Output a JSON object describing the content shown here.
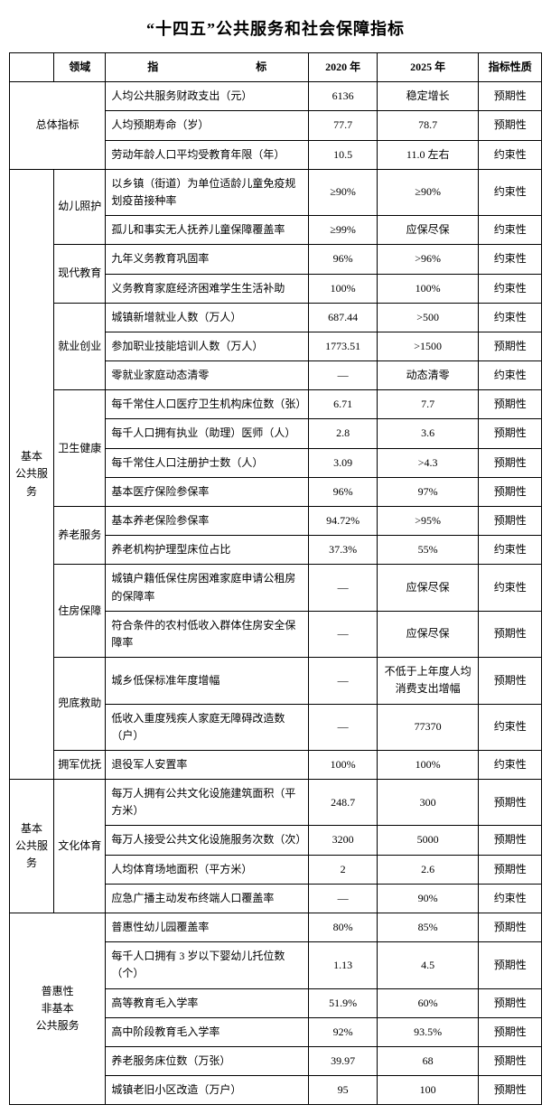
{
  "title": "“十四五”公共服务和社会保障指标",
  "headers": {
    "col1": "",
    "col2": "领域",
    "col3": "指　　　标",
    "col4": "2020 年",
    "col5": "2025 年",
    "col6": "指标性质"
  },
  "cat": {
    "overall": "总体指标",
    "basic": "基本\n公共服务",
    "basic2": "基本\n公共服务",
    "inclusive": "普惠性\n非基本\n公共服务"
  },
  "dom": {
    "childcare": "幼儿照护",
    "edu": "现代教育",
    "employ": "就业创业",
    "health": "卫生健康",
    "eld": "养老服务",
    "housing": "住房保障",
    "poverty": "兜底救助",
    "vet": "拥军优抚",
    "culture": "文化体育"
  },
  "rows": {
    "r1": {
      "ind": "人均公共服务财政支出（元）",
      "y20": "6136",
      "y25": "稳定增长",
      "nat": "预期性"
    },
    "r2": {
      "ind": "人均预期寿命（岁）",
      "y20": "77.7",
      "y25": "78.7",
      "nat": "预期性"
    },
    "r3": {
      "ind": "劳动年龄人口平均受教育年限（年）",
      "y20": "10.5",
      "y25": "11.0 左右",
      "nat": "约束性"
    },
    "r4": {
      "ind": "以乡镇（街道）为单位适龄儿童免疫规划疫苗接种率",
      "y20": "≥90%",
      "y25": "≥90%",
      "nat": "约束性"
    },
    "r5": {
      "ind": "孤儿和事实无人抚养儿童保障覆盖率",
      "y20": "≥99%",
      "y25": "应保尽保",
      "nat": "约束性"
    },
    "r6": {
      "ind": "九年义务教育巩固率",
      "y20": "96%",
      "y25": ">96%",
      "nat": "约束性"
    },
    "r7": {
      "ind": "义务教育家庭经济困难学生生活补助",
      "y20": "100%",
      "y25": "100%",
      "nat": "约束性"
    },
    "r8": {
      "ind": "城镇新增就业人数（万人）",
      "y20": "687.44",
      "y25": ">500",
      "nat": "约束性"
    },
    "r9": {
      "ind": "参加职业技能培训人数（万人）",
      "y20": "1773.51",
      "y25": ">1500",
      "nat": "预期性"
    },
    "r10": {
      "ind": "零就业家庭动态清零",
      "y20": "—",
      "y25": "动态清零",
      "nat": "约束性"
    },
    "r11": {
      "ind": "每千常住人口医疗卫生机构床位数（张）",
      "y20": "6.71",
      "y25": "7.7",
      "nat": "预期性"
    },
    "r12": {
      "ind": "每千人口拥有执业（助理）医师（人）",
      "y20": "2.8",
      "y25": "3.6",
      "nat": "预期性"
    },
    "r13": {
      "ind": "每千常住人口注册护士数（人）",
      "y20": "3.09",
      "y25": ">4.3",
      "nat": "预期性"
    },
    "r14": {
      "ind": "基本医疗保险参保率",
      "y20": "96%",
      "y25": "97%",
      "nat": "预期性"
    },
    "r15": {
      "ind": "基本养老保险参保率",
      "y20": "94.72%",
      "y25": ">95%",
      "nat": "预期性"
    },
    "r16": {
      "ind": "养老机构护理型床位占比",
      "y20": "37.3%",
      "y25": "55%",
      "nat": "约束性"
    },
    "r17": {
      "ind": "城镇户籍低保住房困难家庭申请公租房的保障率",
      "y20": "—",
      "y25": "应保尽保",
      "nat": "约束性"
    },
    "r18": {
      "ind": "符合条件的农村低收入群体住房安全保障率",
      "y20": "—",
      "y25": "应保尽保",
      "nat": "预期性"
    },
    "r19": {
      "ind": "城乡低保标准年度增幅",
      "y20": "—",
      "y25": "不低于上年度人均消费支出增幅",
      "nat": "预期性"
    },
    "r20": {
      "ind": "低收入重度残疾人家庭无障碍改造数（户）",
      "y20": "—",
      "y25": "77370",
      "nat": "约束性"
    },
    "r21": {
      "ind": "退役军人安置率",
      "y20": "100%",
      "y25": "100%",
      "nat": "约束性"
    },
    "r22": {
      "ind": "每万人拥有公共文化设施建筑面积（平方米）",
      "y20": "248.7",
      "y25": "300",
      "nat": "预期性"
    },
    "r23": {
      "ind": "每万人接受公共文化设施服务次数（次）",
      "y20": "3200",
      "y25": "5000",
      "nat": "预期性"
    },
    "r24": {
      "ind": "人均体育场地面积（平方米）",
      "y20": "2",
      "y25": "2.6",
      "nat": "预期性"
    },
    "r25": {
      "ind": "应急广播主动发布终端人口覆盖率",
      "y20": "—",
      "y25": "90%",
      "nat": "约束性"
    },
    "r26": {
      "ind": "普惠性幼儿园覆盖率",
      "y20": "80%",
      "y25": "85%",
      "nat": "预期性"
    },
    "r27": {
      "ind": "每千人口拥有 3 岁以下婴幼儿托位数（个）",
      "y20": "1.13",
      "y25": "4.5",
      "nat": "预期性"
    },
    "r28": {
      "ind": "高等教育毛入学率",
      "y20": "51.9%",
      "y25": "60%",
      "nat": "预期性"
    },
    "r29": {
      "ind": "高中阶段教育毛入学率",
      "y20": "92%",
      "y25": "93.5%",
      "nat": "预期性"
    },
    "r30": {
      "ind": "养老服务床位数（万张）",
      "y20": "39.97",
      "y25": "68",
      "nat": "预期性"
    },
    "r31": {
      "ind": "城镇老旧小区改造（万户）",
      "y20": "95",
      "y25": "100",
      "nat": "预期性"
    }
  }
}
